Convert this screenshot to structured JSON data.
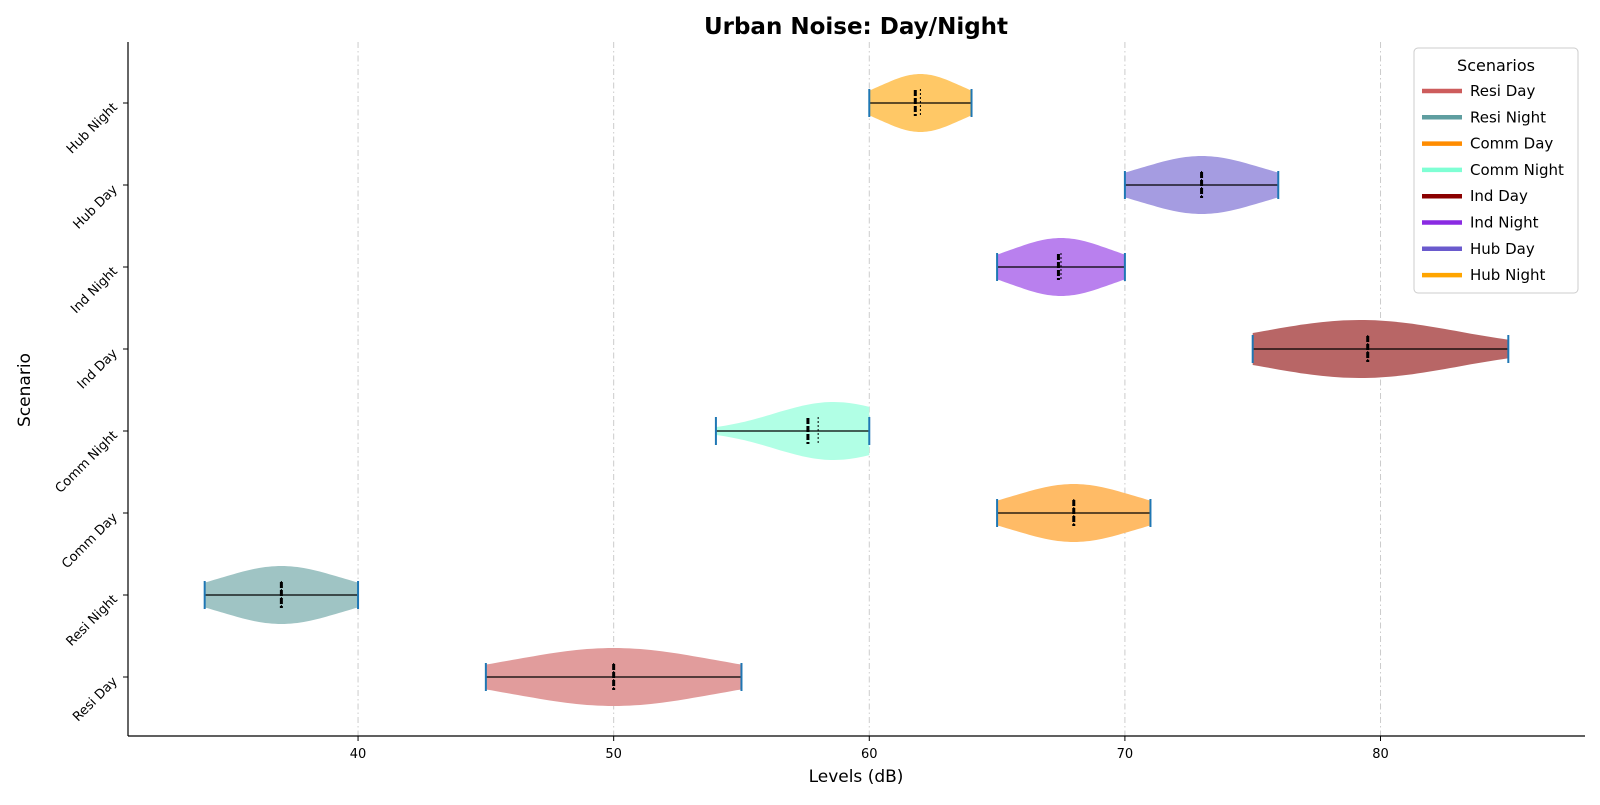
{
  "chart_data": {
    "type": "violin",
    "orientation": "horizontal",
    "title": "Urban Noise: Day/Night",
    "xlabel": "Levels (dB)",
    "ylabel": "Scenario",
    "xlim": [
      31,
      88
    ],
    "xticks": [
      40,
      50,
      60,
      70,
      80
    ],
    "grid": "x-dashed",
    "legend": {
      "title": "Scenarios",
      "position": "top-right"
    },
    "categories": [
      "Resi Day",
      "Resi Night",
      "Comm Day",
      "Comm Night",
      "Ind Day",
      "Ind Night",
      "Hub Day",
      "Hub Night"
    ],
    "series": [
      {
        "name": "Resi Day",
        "min": 45,
        "max": 55,
        "mean": 50.0,
        "median": 50.0,
        "mode": 50,
        "legend_color": "#cd5c5c",
        "fill": "#e19c9c"
      },
      {
        "name": "Resi Night",
        "min": 34,
        "max": 40,
        "mean": 37.0,
        "median": 37.0,
        "mode": 37,
        "legend_color": "#5f9ea0",
        "fill": "#9fc4c4"
      },
      {
        "name": "Comm Day",
        "min": 65,
        "max": 71,
        "mean": 68.0,
        "median": 68.0,
        "mode": 68,
        "legend_color": "#ff8c00",
        "fill": "#ffbb66"
      },
      {
        "name": "Comm Night",
        "min": 54,
        "max": 60,
        "mean": 57.6,
        "median": 58.0,
        "mode": 58.6,
        "legend_color": "#7fffd4",
        "fill": "#b1ffe5"
      },
      {
        "name": "Ind Day",
        "min": 75,
        "max": 85,
        "mean": 79.5,
        "median": 79.5,
        "mode": 79.2,
        "legend_color": "#8b0000",
        "fill": "#b86666"
      },
      {
        "name": "Ind Night",
        "min": 65,
        "max": 70,
        "mean": 67.4,
        "median": 67.5,
        "mode": 67.5,
        "legend_color": "#8a2be2",
        "fill": "#b980ee"
      },
      {
        "name": "Hub Day",
        "min": 70,
        "max": 76,
        "mean": 73.0,
        "median": 73.0,
        "mode": 73,
        "legend_color": "#6a5acd",
        "fill": "#a59ce1"
      },
      {
        "name": "Hub Night",
        "min": 60,
        "max": 64,
        "mean": 61.8,
        "median": 62.0,
        "mode": 62,
        "legend_color": "#ffa500",
        "fill": "#ffc866"
      }
    ]
  }
}
